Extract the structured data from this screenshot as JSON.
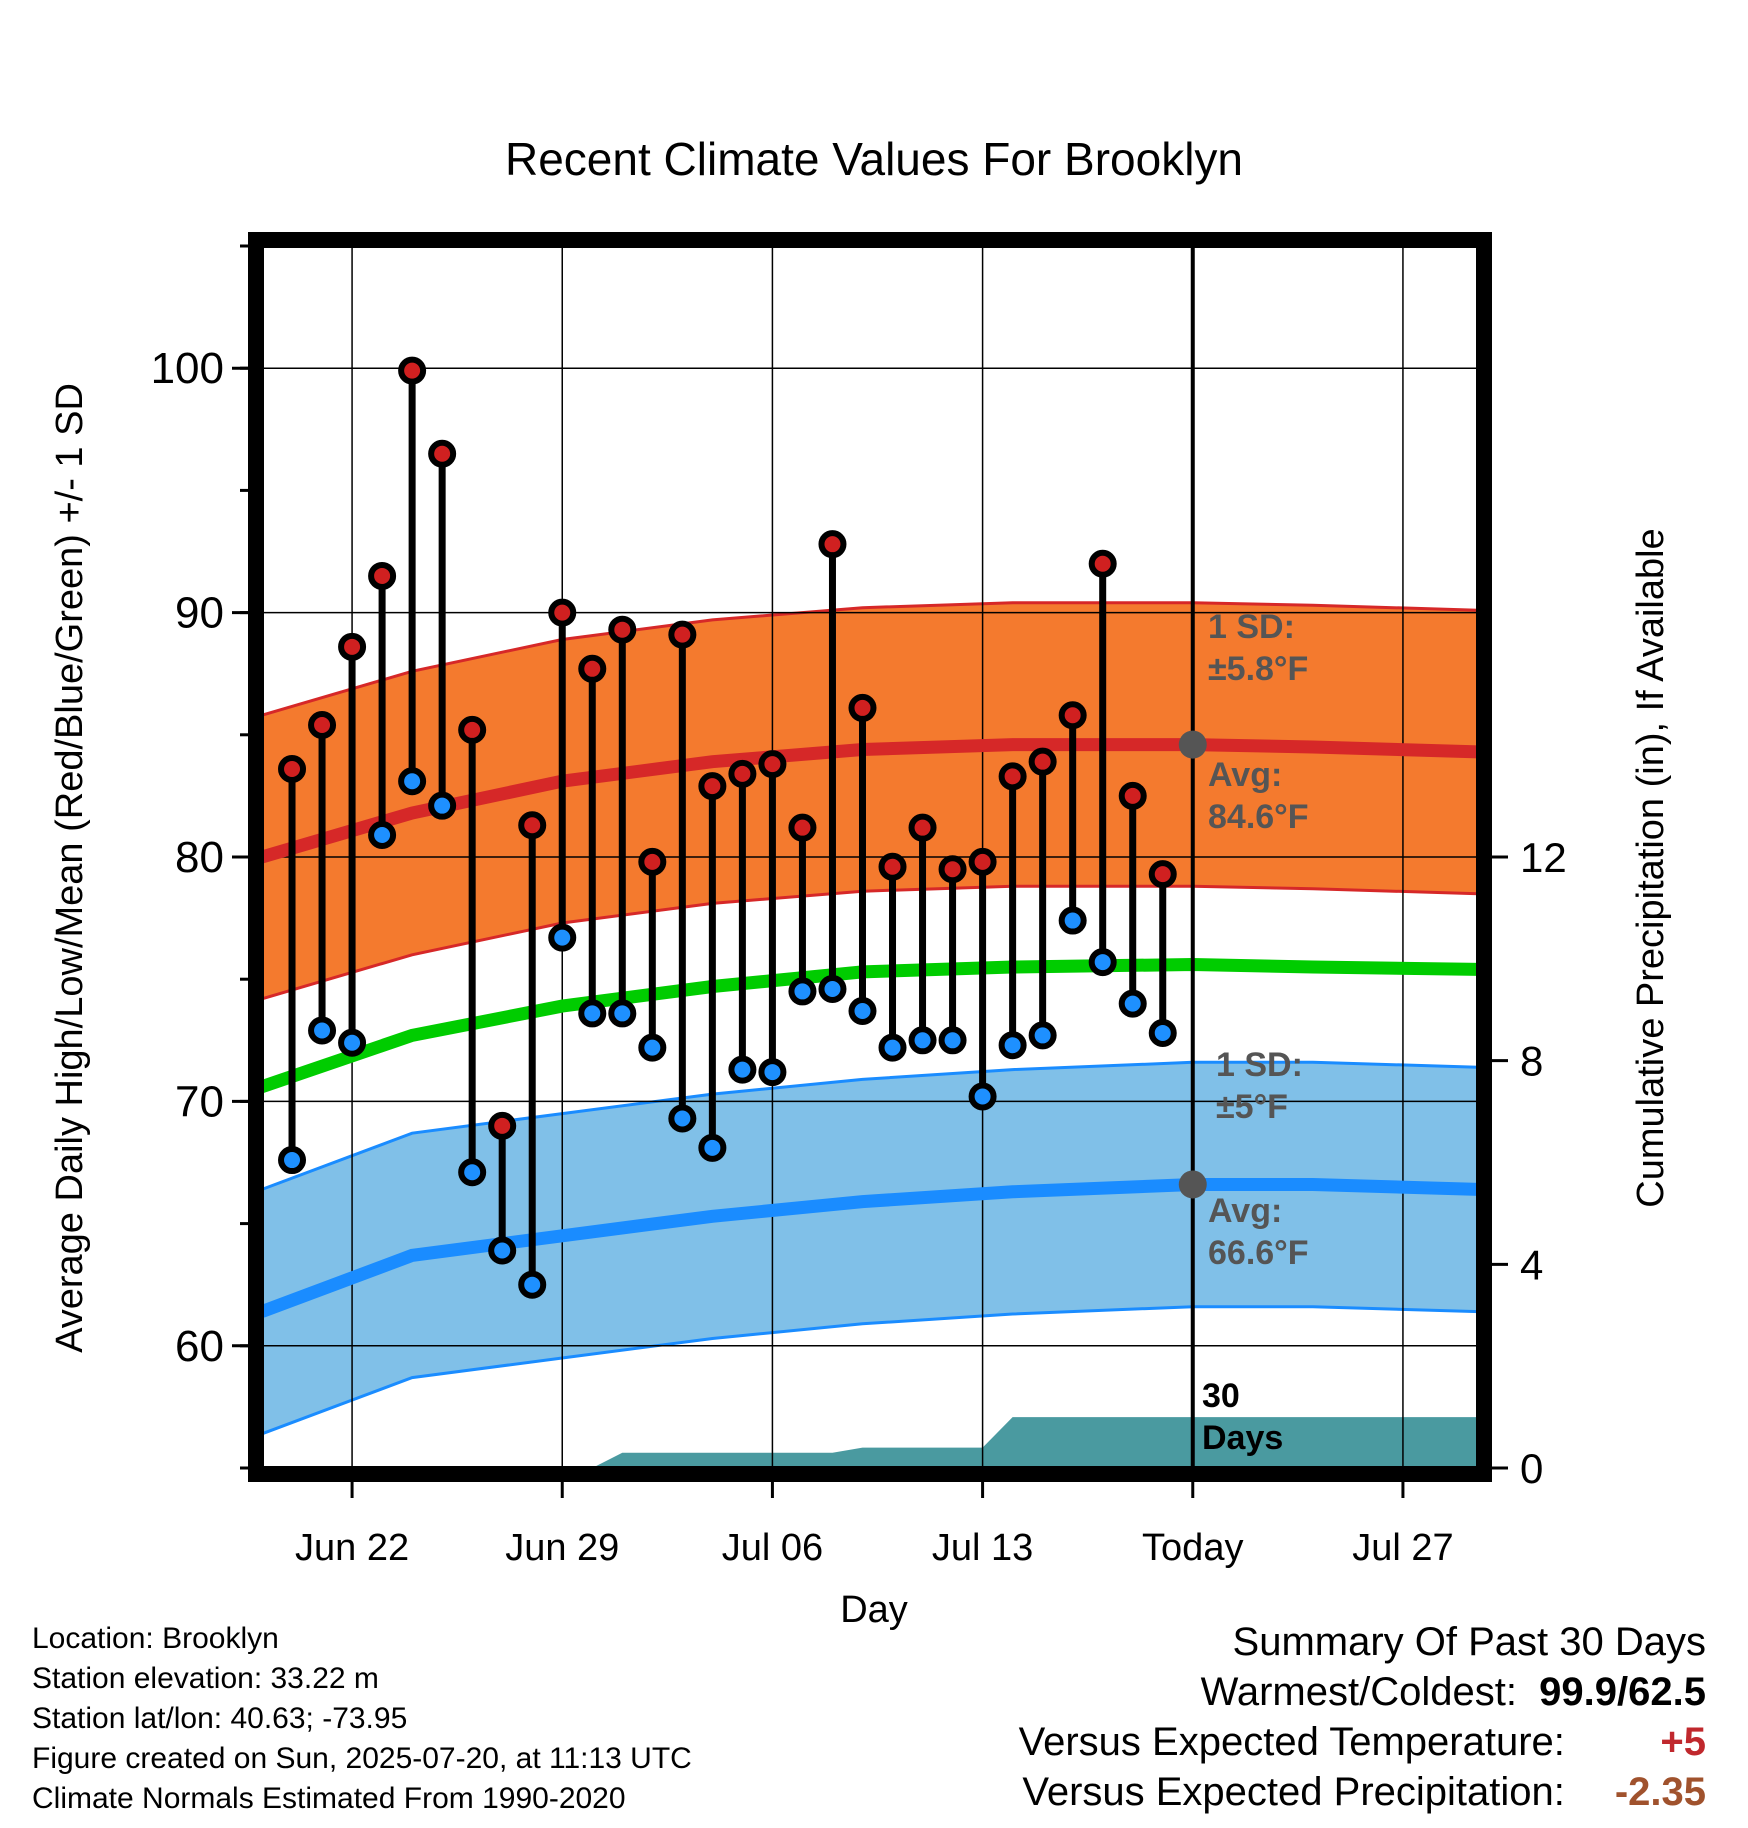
{
  "chart_data": {
    "type": "line",
    "title": "Recent Climate Values For Brooklyn",
    "xlabel": "Day",
    "ylabel_left": "Average Daily High/Low/Mean (Red/Blue/Green) +/- 1 SD",
    "ylabel_right": "Cumulative Precipitation (in), If Available",
    "x_ticks": [
      {
        "day": 3,
        "label": "Jun 22"
      },
      {
        "day": 10,
        "label": "Jun 29"
      },
      {
        "day": 17,
        "label": "Jul 06"
      },
      {
        "day": 24,
        "label": "Jul 13"
      },
      {
        "day": 31,
        "label": "Today"
      },
      {
        "day": 38,
        "label": "Jul 27"
      }
    ],
    "y_ticks_left": [
      60,
      70,
      80,
      90,
      100
    ],
    "y_ticks_right": [
      0,
      4,
      8,
      12
    ],
    "ylim_left": [
      55,
      105
    ],
    "ylim_right": [
      0,
      24
    ],
    "xlim": [
      0,
      40.5
    ],
    "today_day": 31,
    "days": [
      1,
      2,
      3,
      4,
      5,
      6,
      7,
      8,
      9,
      10,
      11,
      12,
      13,
      14,
      15,
      16,
      17,
      18,
      19,
      20,
      21,
      22,
      23,
      24,
      25,
      26,
      27,
      28,
      29,
      30
    ],
    "highs": [
      83.6,
      85.4,
      88.6,
      91.5,
      99.9,
      96.5,
      85.2,
      69.0,
      81.3,
      90.0,
      87.7,
      89.3,
      79.8,
      89.1,
      82.9,
      83.4,
      83.8,
      81.2,
      92.8,
      86.1,
      79.6,
      81.2,
      79.5,
      79.8,
      83.3,
      83.9,
      85.8,
      92.0,
      82.5,
      79.3
    ],
    "lows": [
      67.6,
      72.9,
      72.4,
      80.9,
      83.1,
      82.1,
      67.1,
      63.9,
      62.5,
      76.7,
      73.6,
      73.6,
      72.2,
      69.3,
      68.1,
      71.3,
      71.2,
      74.5,
      74.6,
      73.7,
      72.2,
      72.5,
      72.5,
      70.2,
      72.3,
      72.7,
      77.4,
      75.7,
      74.0,
      72.8
    ],
    "normals": {
      "days": [
        0,
        5,
        10,
        15,
        20,
        25,
        31,
        35,
        40.5
      ],
      "high_avg": [
        80.0,
        81.8,
        83.1,
        83.9,
        84.4,
        84.6,
        84.6,
        84.5,
        84.3
      ],
      "high_sd": 5.8,
      "mean_avg": [
        70.6,
        72.7,
        73.9,
        74.7,
        75.3,
        75.5,
        75.6,
        75.5,
        75.4
      ],
      "low_avg": [
        61.4,
        63.7,
        64.5,
        65.3,
        65.9,
        66.3,
        66.6,
        66.6,
        66.4
      ],
      "low_sd": 5.0
    },
    "precip": {
      "days": [
        11,
        12,
        19,
        20,
        24,
        25,
        40.5
      ],
      "cumulative": [
        0,
        0.3,
        0.3,
        0.4,
        0.4,
        1.0,
        1.0
      ]
    },
    "annotations": {
      "high_sd": "1 SD:\n±5.8°F",
      "high_avg": "Avg:\n84.6°F",
      "low_sd": "1 SD:\n±5°F",
      "low_avg": "Avg:\n66.6°F",
      "precip_days": "30\nDays"
    },
    "colors": {
      "high_band": "#f47a2e",
      "high_line": "#d62828",
      "mean_line": "#00cc00",
      "low_band": "#80c0e8",
      "low_line": "#1a8cff",
      "precip": "#4a9aa0",
      "high_marker": "#d02020",
      "low_marker": "#1e90ff",
      "annotation_text": "#555555"
    }
  },
  "footer": {
    "location": "Location: Brooklyn",
    "elevation": "Station elevation: 33.22 m",
    "latlon": "Station lat/lon: 40.63; -73.95",
    "created": "Figure created on Sun, 2025-07-20, at 11:13 UTC",
    "normals": "Climate Normals Estimated From 1990-2020"
  },
  "summary": {
    "title": "Summary Of Past 30 Days",
    "warm_cold_label": "Warmest/Coldest:",
    "warm_cold_value": "99.9/62.5",
    "temp_label": "Versus Expected Temperature:",
    "temp_value": "+5",
    "temp_color": "#c0282d",
    "precip_label": "Versus Expected Precipitation:",
    "precip_value": "-2.35",
    "precip_color": "#a0522d"
  }
}
